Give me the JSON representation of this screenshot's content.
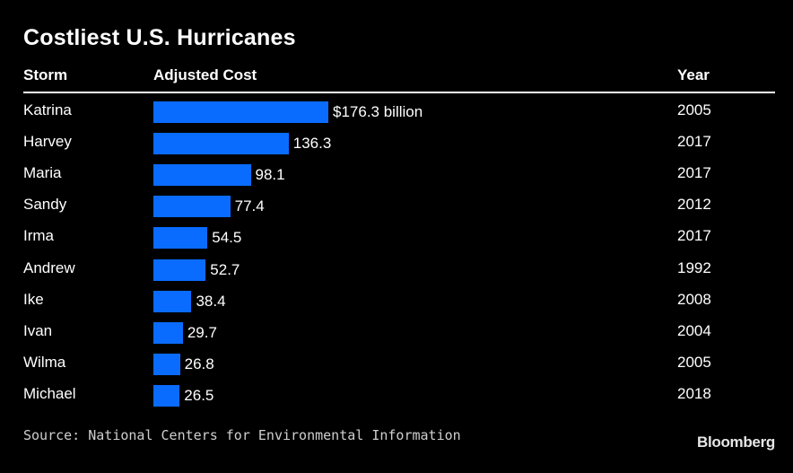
{
  "title": "Costliest U.S. Hurricanes",
  "headers": {
    "storm": "Storm",
    "cost": "Adjusted Cost",
    "year": "Year"
  },
  "source": "Source: National Centers for Environmental Information",
  "brand": "Bloomberg",
  "colors": {
    "background": "#000000",
    "bar": "#0a6cff",
    "text": "#ffffff"
  },
  "chart_data": {
    "type": "bar",
    "orientation": "horizontal",
    "title": "Costliest U.S. Hurricanes",
    "categories": [
      "Katrina",
      "Harvey",
      "Maria",
      "Sandy",
      "Irma",
      "Andrew",
      "Ike",
      "Ivan",
      "Wilma",
      "Michael"
    ],
    "values": [
      176.3,
      136.3,
      98.1,
      77.4,
      54.5,
      52.7,
      38.4,
      29.7,
      26.8,
      26.5
    ],
    "value_labels": [
      "$176.3 billion",
      "136.3",
      "98.1",
      "77.4",
      "54.5",
      "52.7",
      "38.4",
      "29.7",
      "26.8",
      "26.5"
    ],
    "years": [
      "2005",
      "2017",
      "2017",
      "2012",
      "2017",
      "1992",
      "2008",
      "2004",
      "2005",
      "2018"
    ],
    "xlim": [
      0,
      176.3
    ],
    "grid": false,
    "legend": "none"
  }
}
